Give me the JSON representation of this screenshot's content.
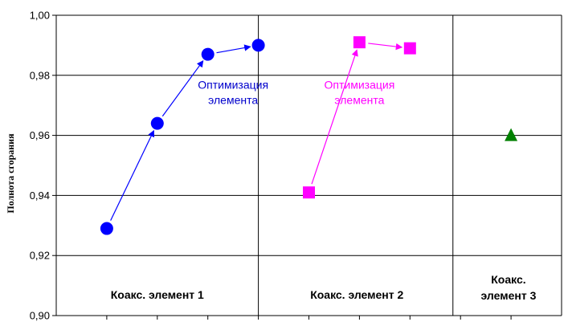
{
  "chart_data": {
    "type": "scatter",
    "ylabel": "Полнота сгорания",
    "xlabel": "",
    "title": "",
    "ylim": [
      0.9,
      1.0
    ],
    "yticks": [
      "0,90",
      "0,92",
      "0,94",
      "0,96",
      "0,98",
      "1,00"
    ],
    "ytick_values": [
      0.9,
      0.92,
      0.94,
      0.96,
      0.98,
      1.0
    ],
    "xlim": [
      0,
      10
    ],
    "grid": true,
    "region_dividers_x": [
      4.0,
      7.85
    ],
    "regions": [
      {
        "label_lines": [
          "Коакс. элемент 1"
        ],
        "x_center": 2.0
      },
      {
        "label_lines": [
          "Коакс. элемент 2"
        ],
        "x_center": 5.95
      },
      {
        "label_lines": [
          "Коакс.",
          "элемент 3"
        ],
        "x_center": 8.95
      }
    ],
    "series": [
      {
        "marker": "circle",
        "color": "#0000FF",
        "x": [
          1,
          2,
          3,
          4
        ],
        "y": [
          0.929,
          0.964,
          0.987,
          0.99
        ],
        "arrows": true
      },
      {
        "marker": "square",
        "color": "#FF00FF",
        "x": [
          5,
          6,
          7
        ],
        "y": [
          0.941,
          0.991,
          0.989
        ],
        "arrows": true
      },
      {
        "marker": "triangle",
        "color": "#008000",
        "x": [
          9
        ],
        "y": [
          0.96
        ],
        "arrows": false
      }
    ],
    "annotations": [
      {
        "lines": [
          "Оптимизация",
          "элемента"
        ],
        "color": "#0000CC",
        "x": 3.5,
        "y": 0.9755
      },
      {
        "lines": [
          "Оптимизация",
          "элемента"
        ],
        "color": "#FF00FF",
        "x": 6.0,
        "y": 0.9755
      }
    ]
  }
}
